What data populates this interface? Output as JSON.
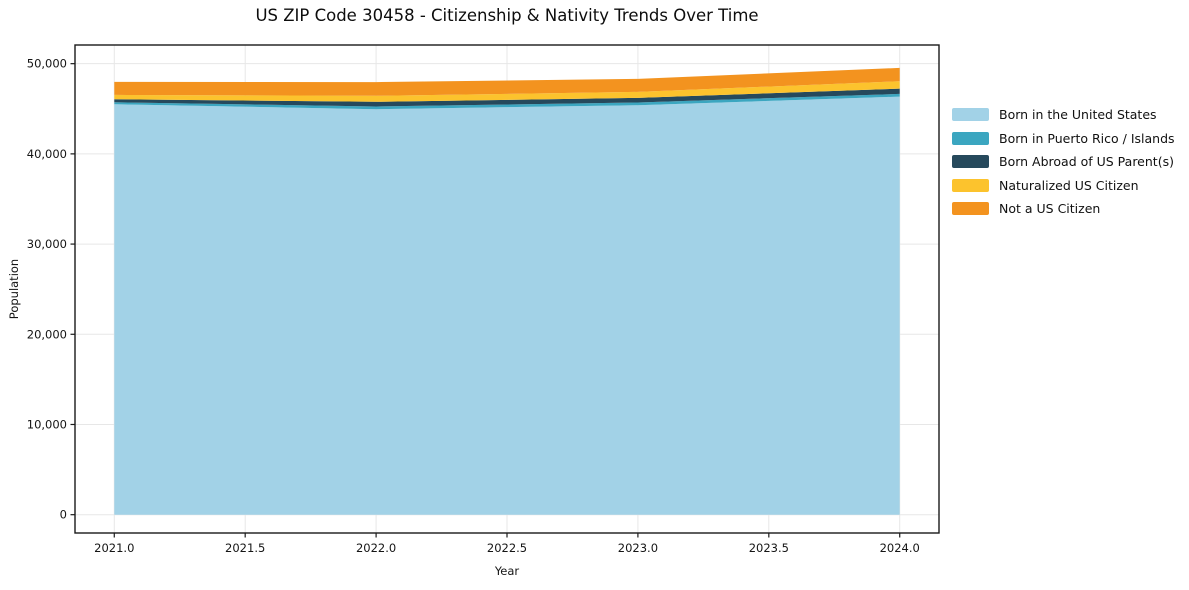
{
  "chart_data": {
    "type": "area",
    "stacked": true,
    "title": "US ZIP Code 30458 - Citizenship & Nativity Trends Over Time",
    "xlabel": "Year",
    "ylabel": "Population",
    "x": [
      2021,
      2022,
      2023,
      2024
    ],
    "series": [
      {
        "name": "Born in the United States",
        "color": "#a2d2e7",
        "values": [
          45500,
          44950,
          45400,
          46350
        ]
      },
      {
        "name": "Born in Puerto Rico / Islands",
        "color": "#3ba6c0",
        "values": [
          220,
          300,
          290,
          300
        ]
      },
      {
        "name": "Born Abroad of US Parent(s)",
        "color": "#26495c",
        "values": [
          340,
          520,
          520,
          590
        ]
      },
      {
        "name": "Naturalized US Citizen",
        "color": "#fcc32d",
        "values": [
          480,
          670,
          660,
          820
        ]
      },
      {
        "name": "Not a US Citizen",
        "color": "#f3931f",
        "values": [
          1440,
          1520,
          1440,
          1470
        ]
      }
    ],
    "totals": [
      47980,
      47960,
      48310,
      49530
    ],
    "xlim": [
      2020.85,
      2024.15
    ],
    "ylim": [
      -2030,
      52070
    ],
    "xticks": [
      {
        "value": 2021.0,
        "label": "2021.0"
      },
      {
        "value": 2021.5,
        "label": "2021.5"
      },
      {
        "value": 2022.0,
        "label": "2022.0"
      },
      {
        "value": 2022.5,
        "label": "2022.5"
      },
      {
        "value": 2023.0,
        "label": "2023.0"
      },
      {
        "value": 2023.5,
        "label": "2023.5"
      },
      {
        "value": 2024.0,
        "label": "2024.0"
      }
    ],
    "yticks": [
      {
        "value": 0,
        "label": "0"
      },
      {
        "value": 10000,
        "label": "10,000"
      },
      {
        "value": 20000,
        "label": "20,000"
      },
      {
        "value": 30000,
        "label": "30,000"
      },
      {
        "value": 40000,
        "label": "40,000"
      },
      {
        "value": 50000,
        "label": "50,000"
      }
    ],
    "grid": true,
    "grid_color": "#e7e7e7",
    "axis_color": "#1a1a1a",
    "tick_label_color": "#151515",
    "legend_position": "right"
  }
}
